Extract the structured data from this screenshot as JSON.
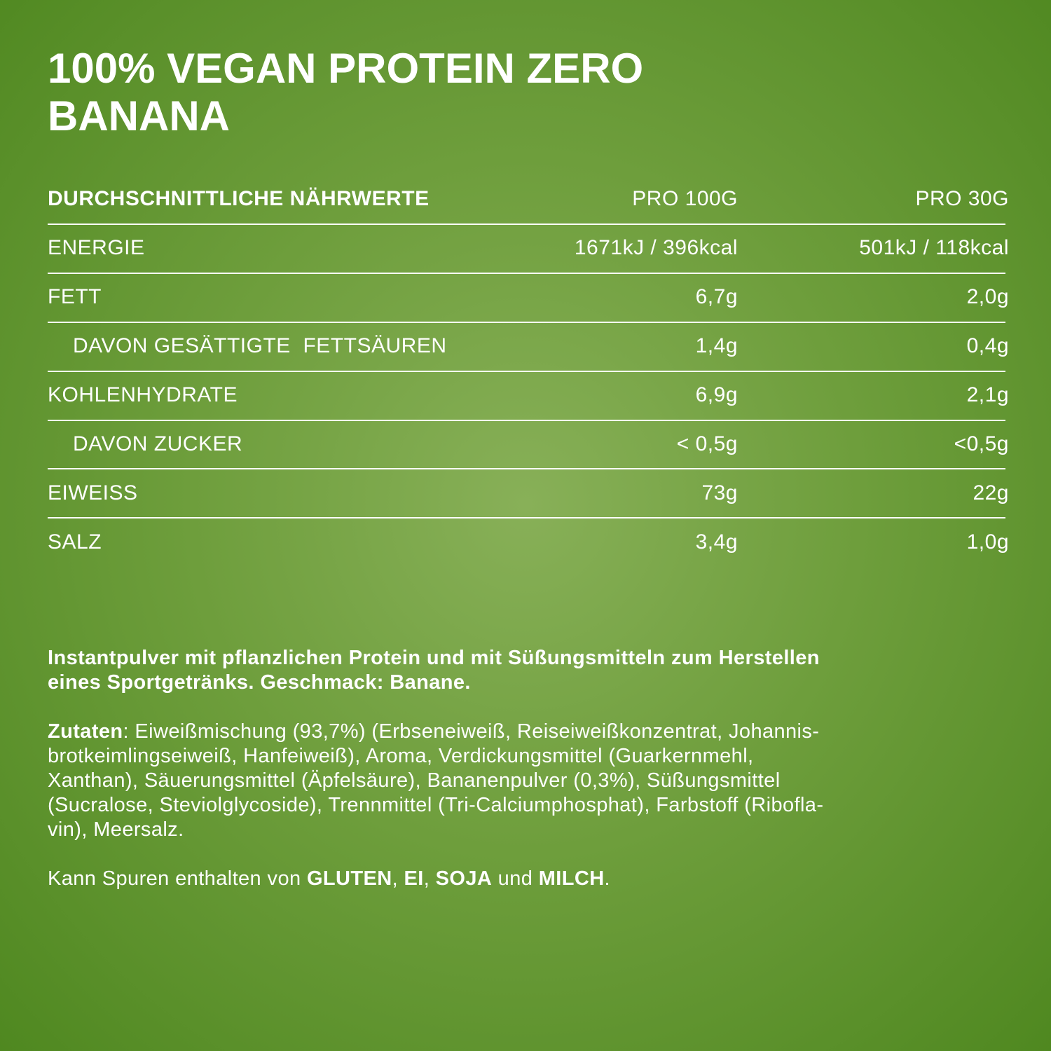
{
  "title_lines": [
    "100% VEGAN PROTEIN ZERO",
    "BANANA"
  ],
  "table": {
    "header": [
      "DURCHSCHNITTLICHE NÄHRWERTE",
      "PRO 100G",
      "PRO 30G"
    ],
    "rows": [
      [
        "ENERGIE",
        "1671kJ / 396kcal",
        "501kJ / 118kcal"
      ],
      [
        "FETT",
        "6,7g",
        "2,0g"
      ],
      [
        "DAVON GESÄTTIGTE  FETTSÄUREN",
        "1,4g",
        "0,4g"
      ],
      [
        "KOHLENHYDRATE",
        "6,9g",
        "2,1g"
      ],
      [
        "DAVON ZUCKER",
        "< 0,5g",
        "<0,5g"
      ],
      [
        "EIWEISS",
        "73g",
        "22g"
      ],
      [
        "SALZ",
        "3,4g",
        "1,0g"
      ]
    ]
  },
  "description_lines": [
    "Instantpulver mit pflanzlichen Protein und mit Süßungsmitteln zum Herstellen",
    "eines Sportgetränks. Geschmack: Banane."
  ],
  "ingredients": {
    "label": "Zutaten",
    "lines": [
      ": Eiweißmischung (93,7%) (Erbseneiweiß, Reiseiweißkonzentrat, Johannis-",
      "brotkeimlingseiweiß, Hanfeiweiß), Aroma, Verdickungsmittel (Guarkernmehl,",
      "Xanthan), Säuerungsmittel (Äpfelsäure), Bananenpulver (0,3%), Süßungsmittel",
      "(Sucralose, Steviolglycoside), Trennmittel (Tri-Calciumphosphat), Farbstoff (Ribofla-",
      "vin), Meersalz."
    ]
  },
  "allergens": [
    "Kann Spuren enthalten von ",
    "GLUTEN",
    ", ",
    "EI",
    ", ",
    "SOJA",
    " und ",
    "MILCH",
    "."
  ]
}
